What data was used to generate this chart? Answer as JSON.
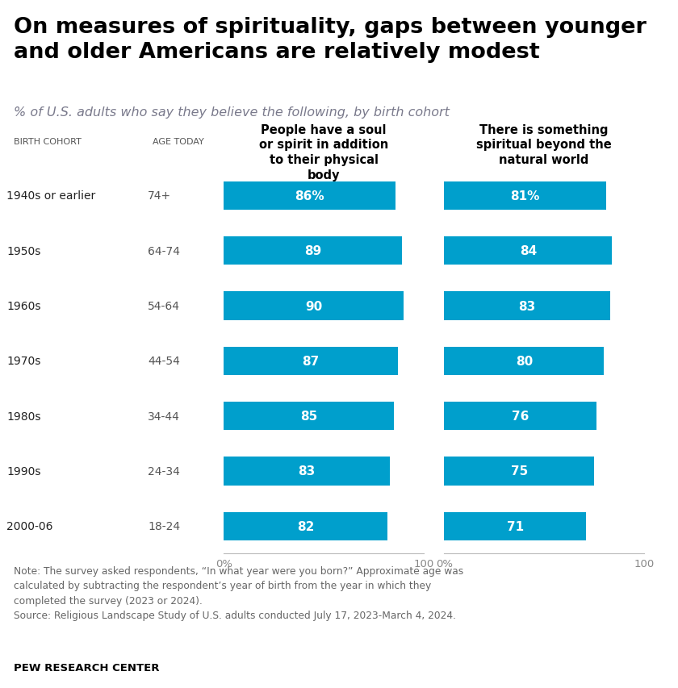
{
  "title": "On measures of spirituality, gaps between younger\nand older Americans are relatively modest",
  "subtitle": "% of U.S. adults who say they believe the following, by birth cohort",
  "col1_header": "People have a soul\nor spirit in addition\nto their physical\nbody",
  "col2_header": "There is something\nspiritual beyond the\nnatural world",
  "birth_cohorts": [
    "1940s or earlier",
    "1950s",
    "1960s",
    "1970s",
    "1980s",
    "1990s",
    "2000-06"
  ],
  "ages": [
    "74+",
    "64-74",
    "54-64",
    "44-54",
    "34-44",
    "24-34",
    "18-24"
  ],
  "col1_values": [
    86,
    89,
    90,
    87,
    85,
    83,
    82
  ],
  "col2_values": [
    81,
    84,
    83,
    80,
    76,
    75,
    71
  ],
  "col1_labels": [
    "86%",
    "89",
    "90",
    "87",
    "85",
    "83",
    "82"
  ],
  "col2_labels": [
    "81%",
    "84",
    "83",
    "80",
    "76",
    "75",
    "71"
  ],
  "bar_color": "#009fcc",
  "bar_text_color": "#ffffff",
  "title_color": "#000000",
  "subtitle_color": "#7a7a8c",
  "cohort_color": "#222222",
  "age_color": "#555555",
  "header_color": "#000000",
  "axis_label_color": "#888888",
  "note_color": "#666666",
  "note_text": "Note: The survey asked respondents, “In what year were you born?” Approximate age was\ncalculated by subtracting the respondent’s year of birth from the year in which they\ncompleted the survey (2023 or 2024).\nSource: Religious Landscape Study of U.S. adults conducted July 17, 2023-March 4, 2024.",
  "footer": "PEW RESEARCH CENTER",
  "xmax": 100,
  "background_color": "#ffffff",
  "birth_cohort_label": "BIRTH COHORT",
  "age_today_label": "AGE TODAY"
}
